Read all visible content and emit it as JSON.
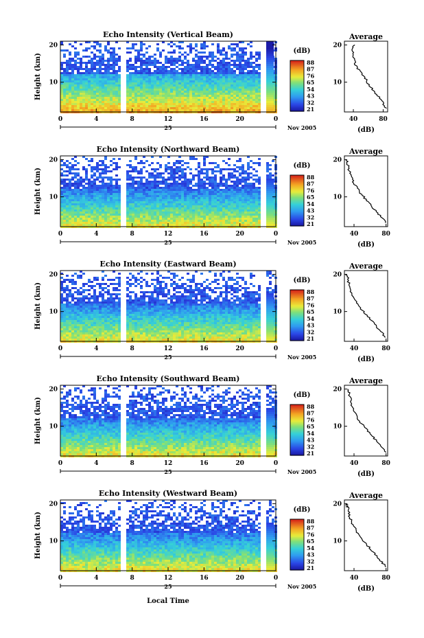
{
  "date_label": "Nov 2005",
  "day_label": "25",
  "xlabel_bottom": "Local Time",
  "colorbar": {
    "unit_label": "(dB)",
    "ticks": [
      "88",
      "87",
      "76",
      "65",
      "54",
      "43",
      "32",
      "21"
    ]
  },
  "avg_title": "Average",
  "avg_xlabel": "(dB)",
  "chart_data": [
    {
      "type": "heatmap",
      "title": "Echo Intensity (Vertical Beam)",
      "ylabel": "Height (km)",
      "x_ticks": [
        "0",
        "4",
        "8",
        "12",
        "16",
        "20",
        "0"
      ],
      "y_ticks": [
        "20",
        "10"
      ],
      "xlim": [
        0,
        24
      ],
      "ylim": [
        2,
        21
      ],
      "avg_profile": {
        "x_ticks": [
          "40",
          "80"
        ],
        "xlim": [
          28,
          86
        ],
        "height": [
          3,
          5,
          7,
          9,
          11,
          13,
          15,
          17,
          19,
          20
        ],
        "db": [
          84,
          78,
          70,
          62,
          56,
          48,
          42,
          40,
          38,
          42
        ]
      }
    },
    {
      "type": "heatmap",
      "title": "Echo Intensity (Northward Beam)",
      "ylabel": "Height (km)",
      "x_ticks": [
        "0",
        "4",
        "8",
        "12",
        "16",
        "20",
        "0"
      ],
      "y_ticks": [
        "20",
        "10"
      ],
      "xlim": [
        0,
        24
      ],
      "ylim": [
        2,
        21
      ],
      "avg_profile": {
        "x_ticks": [
          "40",
          "80"
        ],
        "xlim": [
          28,
          82
        ],
        "height": [
          3,
          5,
          7,
          9,
          11,
          13,
          15,
          17,
          19,
          20
        ],
        "db": [
          80,
          72,
          64,
          56,
          48,
          42,
          37,
          34,
          32,
          30
        ]
      }
    },
    {
      "type": "heatmap",
      "title": "Echo Intensity (Eastward Beam)",
      "ylabel": "Height (km)",
      "x_ticks": [
        "0",
        "4",
        "8",
        "12",
        "16",
        "20",
        "0"
      ],
      "y_ticks": [
        "20",
        "10"
      ],
      "xlim": [
        0,
        24
      ],
      "ylim": [
        2,
        21
      ],
      "avg_profile": {
        "x_ticks": [
          "40",
          "80"
        ],
        "xlim": [
          28,
          82
        ],
        "height": [
          3,
          5,
          7,
          9,
          11,
          13,
          15,
          17,
          19,
          20
        ],
        "db": [
          80,
          72,
          64,
          56,
          48,
          42,
          37,
          34,
          32,
          30
        ]
      }
    },
    {
      "type": "heatmap",
      "title": "Echo Intensity (Southward Beam)",
      "ylabel": "Height (km)",
      "x_ticks": [
        "0",
        "4",
        "8",
        "12",
        "16",
        "20",
        "0"
      ],
      "y_ticks": [
        "20",
        "10"
      ],
      "xlim": [
        0,
        24
      ],
      "ylim": [
        2,
        21
      ],
      "avg_profile": {
        "x_ticks": [
          "40",
          "80"
        ],
        "xlim": [
          28,
          82
        ],
        "height": [
          3,
          5,
          7,
          9,
          11,
          13,
          15,
          17,
          19,
          20
        ],
        "db": [
          80,
          72,
          64,
          56,
          48,
          42,
          38,
          36,
          34,
          32
        ]
      }
    },
    {
      "type": "heatmap",
      "title": "Echo Intensity (Westward Beam)",
      "ylabel": "Height (km)",
      "x_ticks": [
        "0",
        "4",
        "8",
        "12",
        "16",
        "20",
        "0"
      ],
      "y_ticks": [
        "20",
        "10"
      ],
      "xlim": [
        0,
        24
      ],
      "ylim": [
        2,
        21
      ],
      "avg_profile": {
        "x_ticks": [
          "40",
          "80"
        ],
        "xlim": [
          28,
          82
        ],
        "height": [
          3,
          5,
          7,
          9,
          11,
          13,
          15,
          17,
          19,
          20
        ],
        "db": [
          80,
          72,
          64,
          56,
          48,
          42,
          37,
          34,
          32,
          30
        ]
      }
    }
  ]
}
